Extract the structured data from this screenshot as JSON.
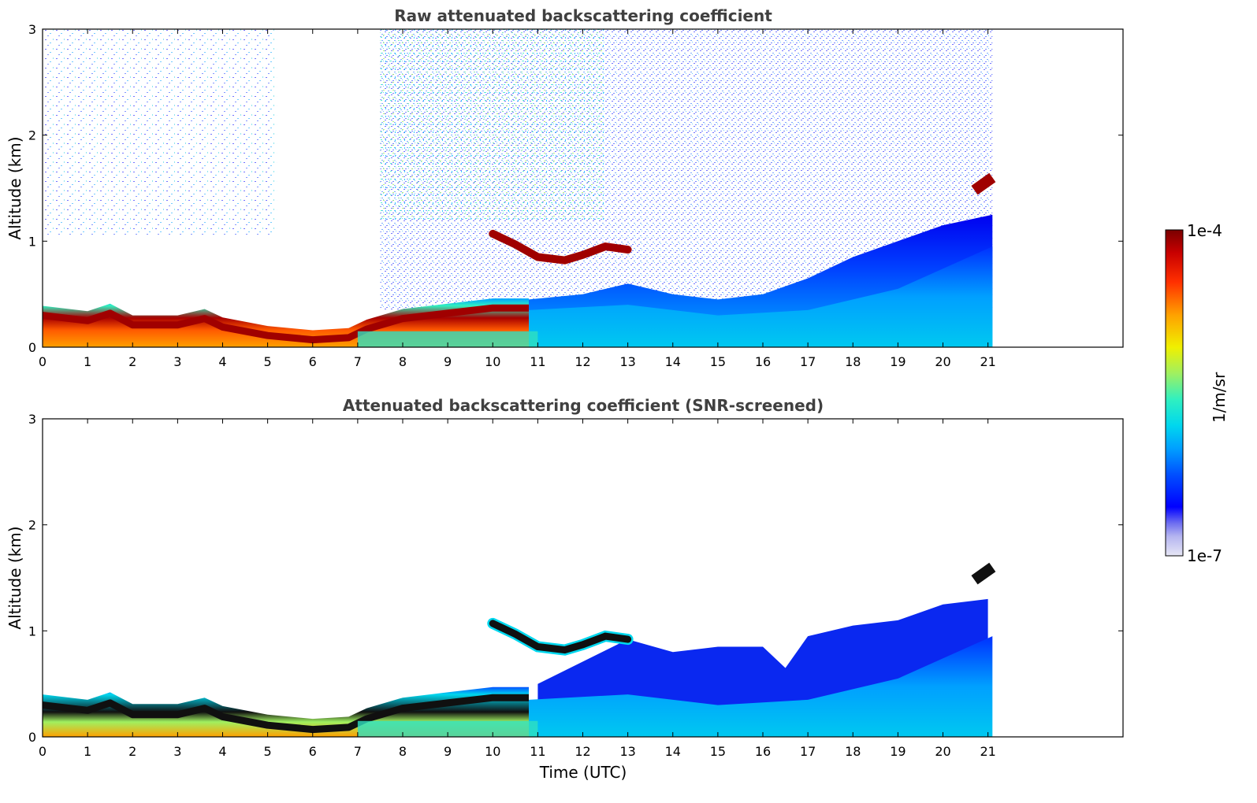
{
  "chart_data": [
    {
      "type": "heatmap",
      "id": "top",
      "title": "Raw attenuated backscattering coefficient",
      "xlabel": "",
      "ylabel": "Altitude (km)",
      "xlim": [
        0,
        24
      ],
      "ylim": [
        0,
        3
      ],
      "xticks": [
        0,
        1,
        2,
        3,
        4,
        5,
        6,
        7,
        8,
        9,
        10,
        11,
        12,
        13,
        14,
        15,
        16,
        17,
        18,
        19,
        20,
        21
      ],
      "yticks": [
        0,
        1,
        2,
        3
      ],
      "data_end_hour": 21.1,
      "features": {
        "boundary_layer_top_km": [
          [
            0,
            0.33
          ],
          [
            1,
            0.28
          ],
          [
            1.5,
            0.35
          ],
          [
            2,
            0.24
          ],
          [
            3,
            0.24
          ],
          [
            3.6,
            0.3
          ],
          [
            4,
            0.22
          ],
          [
            5,
            0.14
          ],
          [
            6,
            0.1
          ],
          [
            6.8,
            0.12
          ],
          [
            7.2,
            0.2
          ],
          [
            8,
            0.3
          ],
          [
            9,
            0.35
          ],
          [
            10,
            0.4
          ],
          [
            10.8,
            0.4
          ]
        ],
        "cloud_layer_km": [
          [
            10,
            1.07
          ],
          [
            10.5,
            0.97
          ],
          [
            11,
            0.85
          ],
          [
            11.6,
            0.82
          ],
          [
            12,
            0.87
          ],
          [
            12.5,
            0.95
          ],
          [
            13,
            0.92
          ]
        ],
        "late_cloud_km": [
          [
            20.7,
            1.48
          ],
          [
            21.1,
            1.6
          ]
        ]
      }
    },
    {
      "type": "heatmap",
      "id": "bottom",
      "title": "Attenuated backscattering coefficient (SNR-screened)",
      "xlabel": "Time (UTC)",
      "ylabel": "Altitude (km)",
      "xlim": [
        0,
        24
      ],
      "ylim": [
        0,
        3
      ],
      "xticks": [
        0,
        1,
        2,
        3,
        4,
        5,
        6,
        7,
        8,
        9,
        10,
        11,
        12,
        13,
        14,
        15,
        16,
        17,
        18,
        19,
        20,
        21
      ],
      "yticks": [
        0,
        1,
        2,
        3
      ],
      "data_end_hour": 21.1,
      "features": {
        "screened_aerosol_top_km": [
          [
            11,
            0.5
          ],
          [
            13,
            0.92
          ],
          [
            14,
            0.8
          ],
          [
            15,
            0.85
          ],
          [
            16,
            0.85
          ],
          [
            16.5,
            0.65
          ],
          [
            17,
            0.95
          ],
          [
            18,
            1.05
          ],
          [
            19,
            1.1
          ],
          [
            20,
            1.25
          ],
          [
            21,
            1.3
          ]
        ]
      }
    }
  ],
  "colorbar": {
    "label": "1/m/sr",
    "max_label": "1e-4",
    "min_label": "1e-7",
    "scale": "log",
    "range": [
      1e-07,
      0.0001
    ],
    "colors": [
      "#e6e6f5",
      "#b4b4f0",
      "#6e6ef0",
      "#0000ff",
      "#0050ff",
      "#00a0ff",
      "#00d7ee",
      "#30f0c0",
      "#a0f060",
      "#f0f000",
      "#ffa000",
      "#ff3000",
      "#c80000",
      "#7a0000"
    ]
  }
}
